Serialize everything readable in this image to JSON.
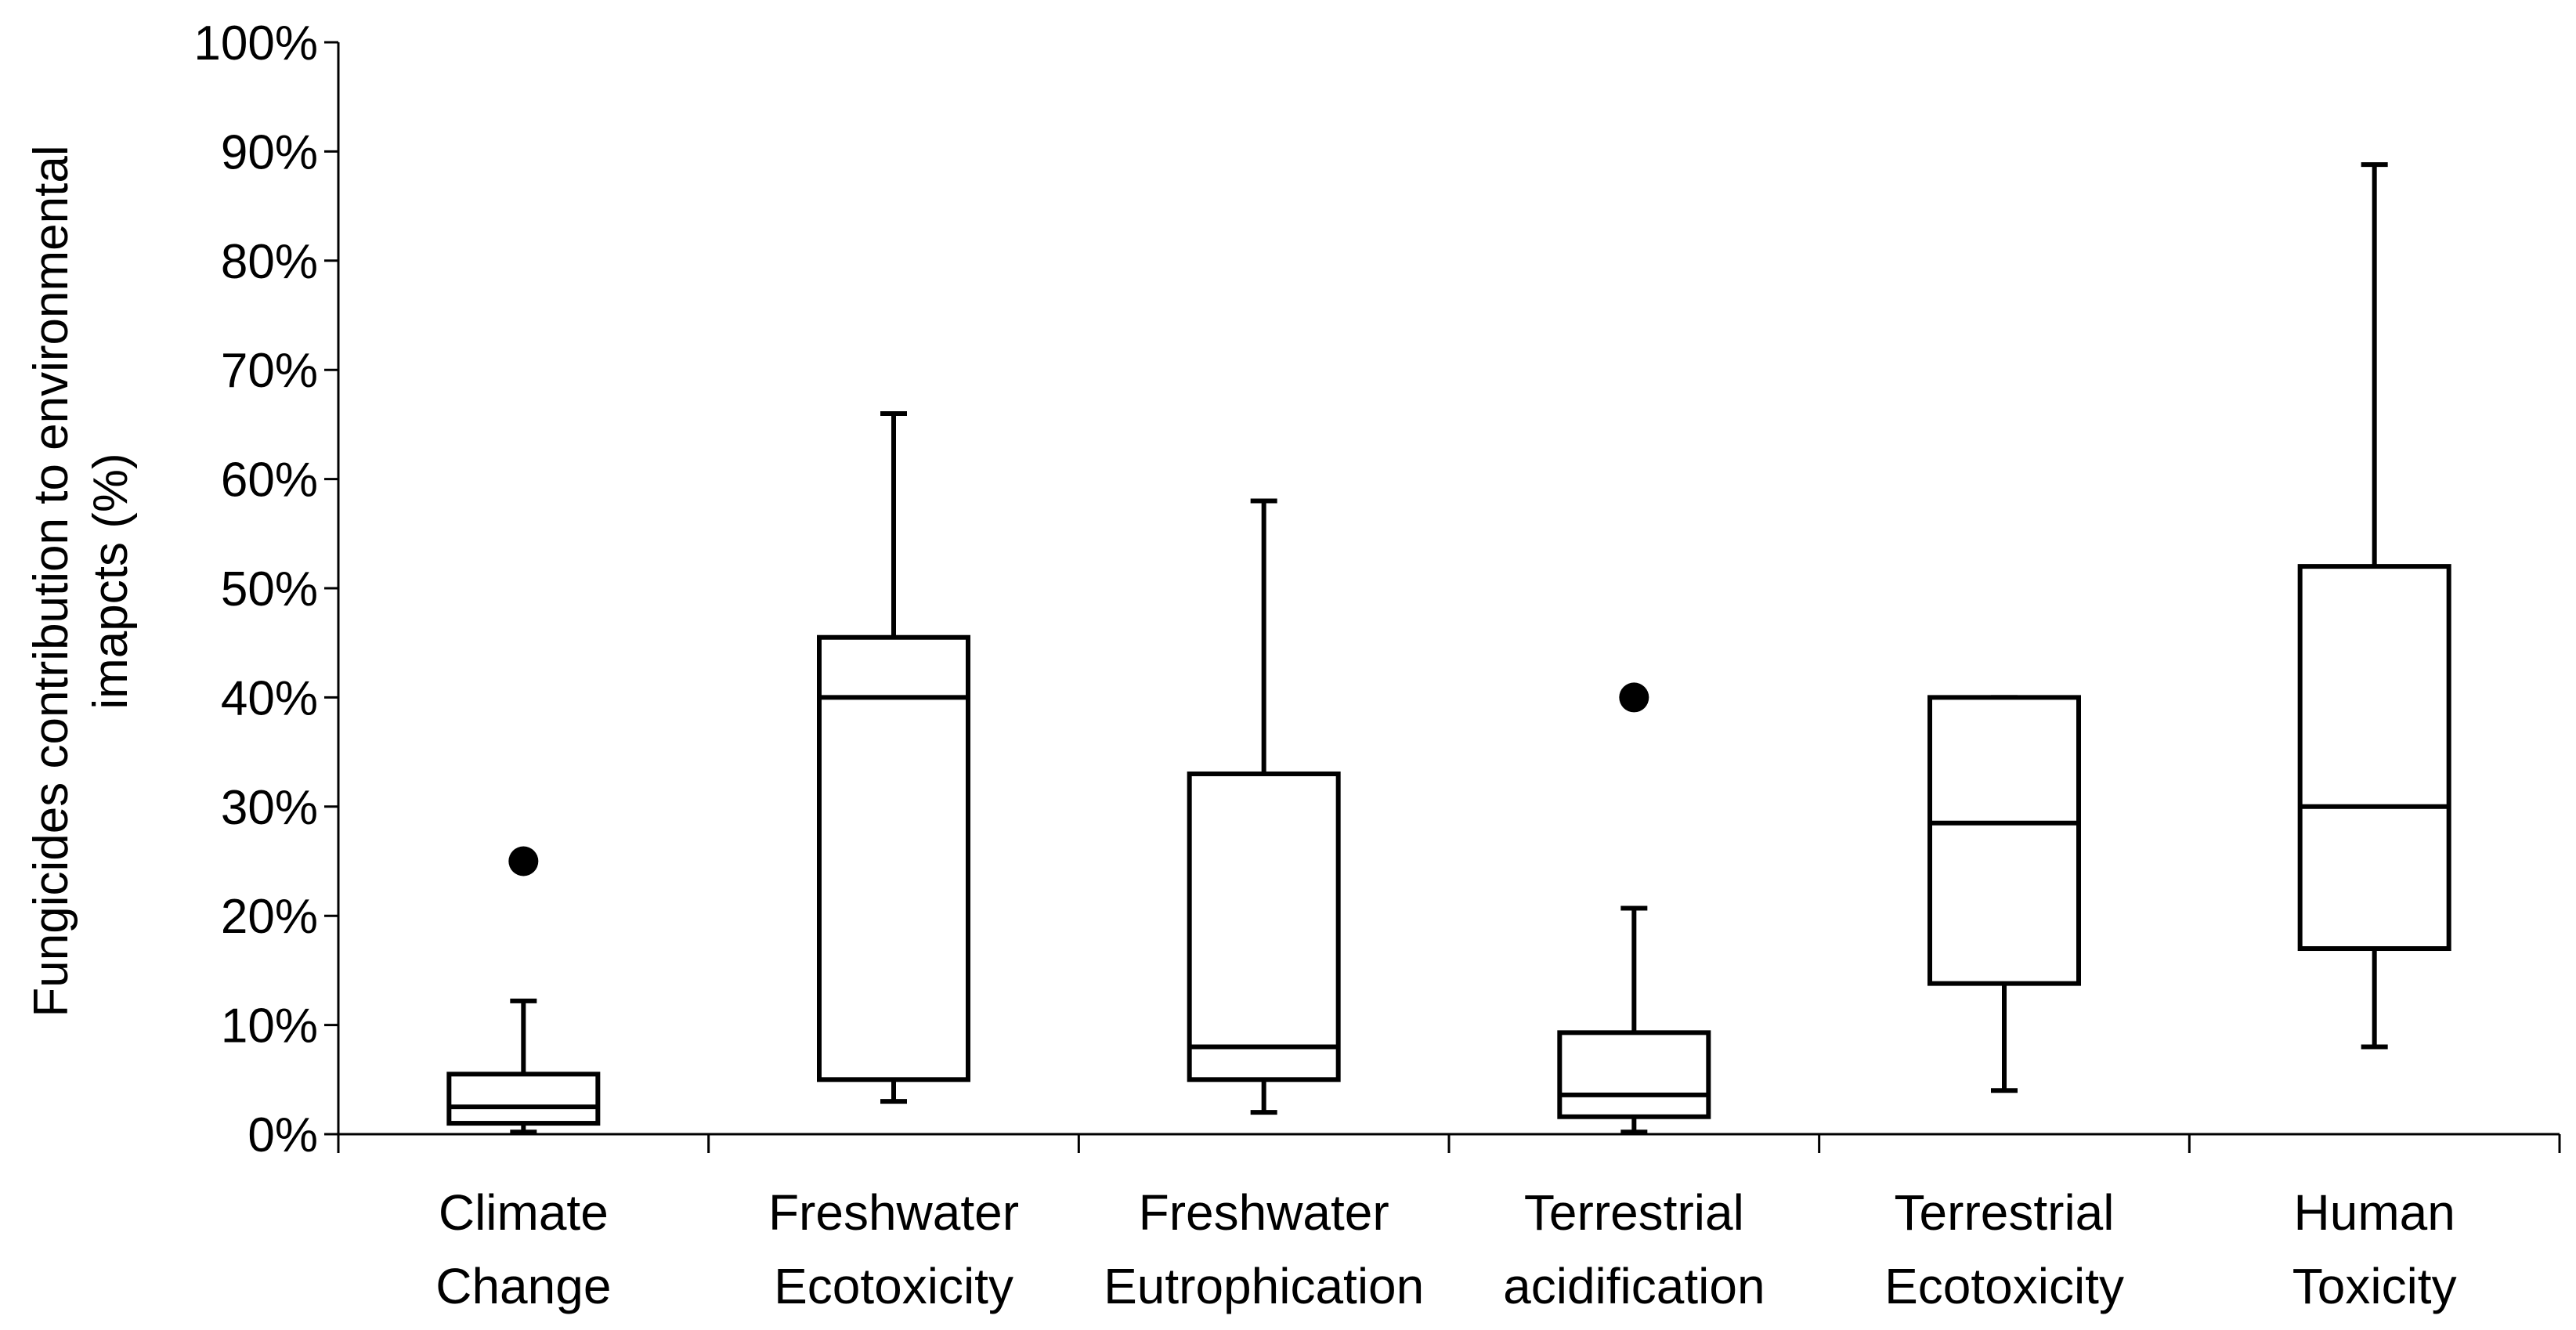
{
  "chart_data": {
    "type": "boxplot",
    "title": "",
    "xlabel": "",
    "ylabel": "Fungicides contribution  to environmental imapcts (%)",
    "ylabel_lines": [
      "Fungicides contribution  to environmental",
      "imapcts (%)"
    ],
    "ylim": [
      0,
      100
    ],
    "y_ticks": [
      0,
      10,
      20,
      30,
      40,
      50,
      60,
      70,
      80,
      90,
      100
    ],
    "y_tick_labels": [
      "0%",
      "10%",
      "20%",
      "30%",
      "40%",
      "50%",
      "60%",
      "70%",
      "80%",
      "90%",
      "100%"
    ],
    "grid": false,
    "categories": [
      {
        "name": "Climate Change",
        "lines": [
          "Climate",
          "Change"
        ]
      },
      {
        "name": "Freshwater Ecotoxicity",
        "lines": [
          "Freshwater",
          "Ecotoxicity"
        ]
      },
      {
        "name": "Freshwater Eutrophication",
        "lines": [
          "Freshwater",
          "Eutrophication"
        ]
      },
      {
        "name": "Terrestrial acidification",
        "lines": [
          "Terrestrial",
          "acidification"
        ]
      },
      {
        "name": "Terrestrial Ecotoxicity",
        "lines": [
          "Terrestrial",
          "Ecotoxicity"
        ]
      },
      {
        "name": "Human Toxicity",
        "lines": [
          "Human",
          "Toxicity"
        ]
      }
    ],
    "boxes": [
      {
        "whisker_low": 0.2,
        "q1": 1,
        "median": 2.5,
        "q3": 5.5,
        "whisker_high": 12.2,
        "outliers": [
          25
        ]
      },
      {
        "whisker_low": 3,
        "q1": 5,
        "median": 40,
        "q3": 45.5,
        "whisker_high": 66,
        "outliers": []
      },
      {
        "whisker_low": 2,
        "q1": 5,
        "median": 8,
        "q3": 33,
        "whisker_high": 58,
        "outliers": []
      },
      {
        "whisker_low": 0.2,
        "q1": 1.6,
        "median": 3.6,
        "q3": 9.3,
        "whisker_high": 20.7,
        "outliers": [
          40
        ]
      },
      {
        "whisker_low": 4,
        "q1": 13.8,
        "median": 28.5,
        "q3": 40,
        "whisker_high": 40,
        "outliers": []
      },
      {
        "whisker_low": 8,
        "q1": 17,
        "median": 30,
        "q3": 52,
        "whisker_high": 88.8,
        "outliers": []
      }
    ]
  }
}
